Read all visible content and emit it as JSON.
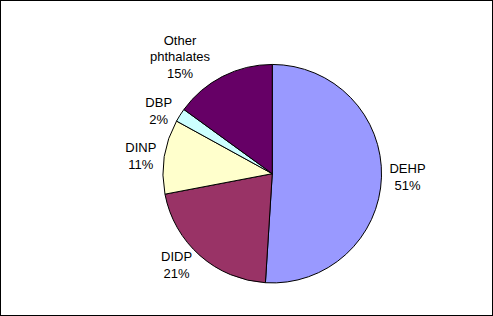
{
  "chart_data": {
    "type": "pie",
    "categories": [
      "DEHP",
      "DIDP",
      "DINP",
      "DBP",
      "Other phthalates"
    ],
    "values": [
      51,
      21,
      11,
      2,
      15
    ],
    "value_labels": [
      "51%",
      "21%",
      "11%",
      "2%",
      "15%"
    ],
    "colors": [
      "#9999ff",
      "#993366",
      "#ffffcc",
      "#ccffff",
      "#660066"
    ],
    "data_labels": true
  }
}
